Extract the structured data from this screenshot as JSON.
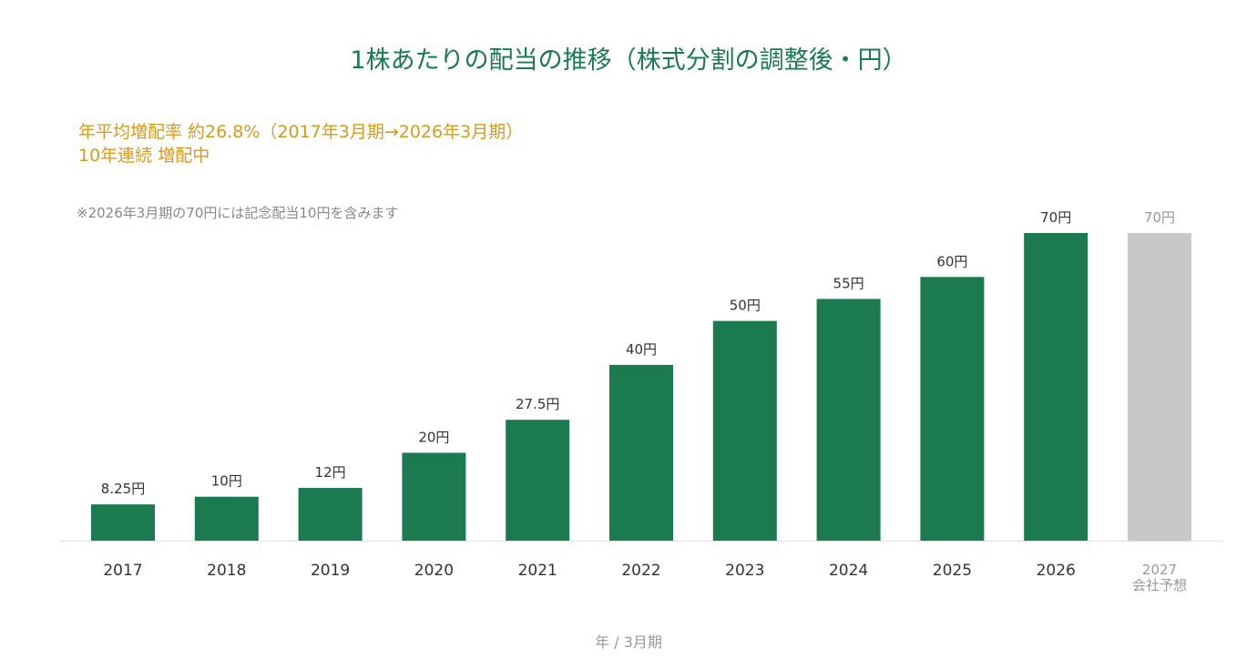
{
  "chart_data": {
    "type": "bar",
    "title": "1株あたりの配当の推移（株式分割の調整後・円）",
    "subtitle_lines": [
      "年平均増配率 約26.8%（2017年3月期→2026年3月期）",
      "10年連続 増配中"
    ],
    "note": "※2026年3月期の70円には記念配当10円を含みます",
    "xlabel": "年 / 3月期",
    "ylabel": "",
    "ylim": [
      0,
      70
    ],
    "categories": [
      "2017",
      "2018",
      "2019",
      "2020",
      "2021",
      "2022",
      "2023",
      "2024",
      "2025",
      "2026",
      "2027"
    ],
    "category_sublabels": [
      "",
      "",
      "",
      "",
      "",
      "",
      "",
      "",
      "",
      "",
      "会社予想"
    ],
    "values": [
      8.25,
      10,
      12,
      20,
      27.5,
      40,
      50,
      55,
      60,
      70,
      70
    ],
    "value_labels": [
      "8.25円",
      "10円",
      "12円",
      "20円",
      "27.5円",
      "40円",
      "50円",
      "55円",
      "60円",
      "70円",
      "70円"
    ],
    "forecast": [
      false,
      false,
      false,
      false,
      false,
      false,
      false,
      false,
      false,
      false,
      true
    ],
    "colors": {
      "actual": "#1b7a50",
      "forecast": "#c8c8c8",
      "title": "#1b7a50",
      "subtitle": "#d89a1e",
      "label": "#333333",
      "forecast_label": "#999999"
    },
    "grid": false,
    "legend": "none"
  }
}
